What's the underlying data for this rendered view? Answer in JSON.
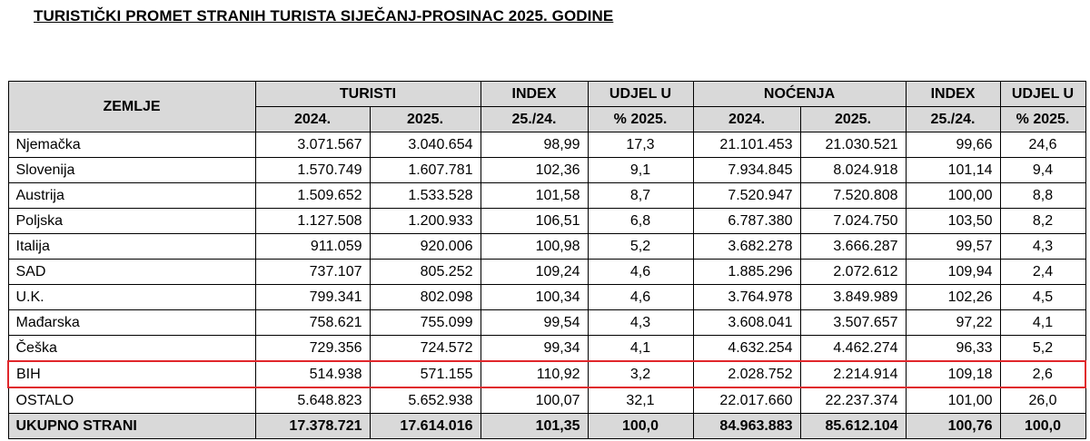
{
  "title": "TURISTIČKI PROMET STRANIH TURISTA SIJEČANJ-PROSINAC 2025. GODINE",
  "header": {
    "zemlje": "ZEMLJE",
    "turisti": "TURISTI",
    "index1": "INDEX",
    "udjel1": "UDJEL U",
    "nocenja": "NOĆENJA",
    "index2": "INDEX",
    "udjel2": "UDJEL U",
    "y2024a": "2024.",
    "y2025a": "2025.",
    "idx_a": "25./24.",
    "pct_a": "% 2025.",
    "y2024b": "2024.",
    "y2025b": "2025.",
    "idx_b": "25./24.",
    "pct_b": "% 2025."
  },
  "rows": [
    {
      "country": "Njemačka",
      "t2024": "3.071.567",
      "t2025": "3.040.654",
      "tidx": "98,99",
      "tshare": "17,3",
      "n2024": "21.101.453",
      "n2025": "21.030.521",
      "nidx": "99,66",
      "nshare": "24,6"
    },
    {
      "country": "Slovenija",
      "t2024": "1.570.749",
      "t2025": "1.607.781",
      "tidx": "102,36",
      "tshare": "9,1",
      "n2024": "7.934.845",
      "n2025": "8.024.918",
      "nidx": "101,14",
      "nshare": "9,4"
    },
    {
      "country": "Austrija",
      "t2024": "1.509.652",
      "t2025": "1.533.528",
      "tidx": "101,58",
      "tshare": "8,7",
      "n2024": "7.520.947",
      "n2025": "7.520.808",
      "nidx": "100,00",
      "nshare": "8,8"
    },
    {
      "country": "Poljska",
      "t2024": "1.127.508",
      "t2025": "1.200.933",
      "tidx": "106,51",
      "tshare": "6,8",
      "n2024": "6.787.380",
      "n2025": "7.024.750",
      "nidx": "103,50",
      "nshare": "8,2"
    },
    {
      "country": "Italija",
      "t2024": "911.059",
      "t2025": "920.006",
      "tidx": "100,98",
      "tshare": "5,2",
      "n2024": "3.682.278",
      "n2025": "3.666.287",
      "nidx": "99,57",
      "nshare": "4,3"
    },
    {
      "country": "SAD",
      "t2024": "737.107",
      "t2025": "805.252",
      "tidx": "109,24",
      "tshare": "4,6",
      "n2024": "1.885.296",
      "n2025": "2.072.612",
      "nidx": "109,94",
      "nshare": "2,4"
    },
    {
      "country": "U.K.",
      "t2024": "799.341",
      "t2025": "802.098",
      "tidx": "100,34",
      "tshare": "4,6",
      "n2024": "3.764.978",
      "n2025": "3.849.989",
      "nidx": "102,26",
      "nshare": "4,5"
    },
    {
      "country": "Mađarska",
      "t2024": "758.621",
      "t2025": "755.099",
      "tidx": "99,54",
      "tshare": "4,3",
      "n2024": "3.608.041",
      "n2025": "3.507.657",
      "nidx": "97,22",
      "nshare": "4,1"
    },
    {
      "country": "Češka",
      "t2024": "729.356",
      "t2025": "724.572",
      "tidx": "99,34",
      "tshare": "4,1",
      "n2024": "4.632.254",
      "n2025": "4.462.274",
      "nidx": "96,33",
      "nshare": "5,2"
    },
    {
      "country": "BIH",
      "t2024": "514.938",
      "t2025": "571.155",
      "tidx": "110,92",
      "tshare": "3,2",
      "n2024": "2.028.752",
      "n2025": "2.214.914",
      "nidx": "109,18",
      "nshare": "2,6"
    },
    {
      "country": "OSTALO",
      "t2024": "5.648.823",
      "t2025": "5.652.938",
      "tidx": "100,07",
      "tshare": "32,1",
      "n2024": "22.017.660",
      "n2025": "22.237.374",
      "nidx": "101,00",
      "nshare": "26,0"
    }
  ],
  "total": {
    "country": "UKUPNO STRANI",
    "t2024": "17.378.721",
    "t2025": "17.614.016",
    "tidx": "101,35",
    "tshare": "100,0",
    "n2024": "84.963.883",
    "n2025": "85.612.104",
    "nidx": "100,76",
    "nshare": "100,0"
  },
  "colors": {
    "header_bg": "#d9d9d9",
    "highlight_border": "#e0262b"
  }
}
